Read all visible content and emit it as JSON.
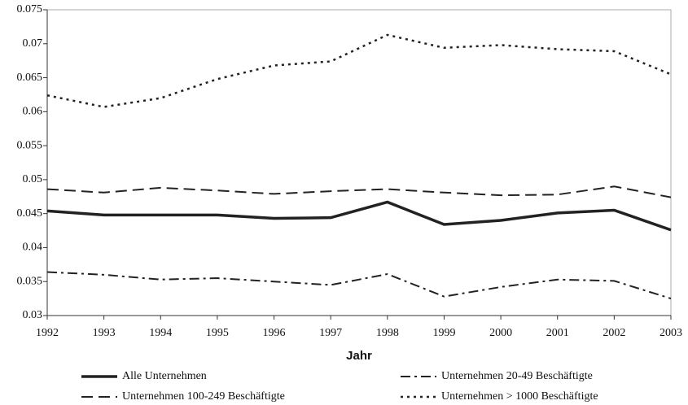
{
  "chart_data": {
    "type": "line",
    "x_label": "Jahr",
    "x": [
      1992,
      1993,
      1994,
      1995,
      1996,
      1997,
      1998,
      1999,
      2000,
      2001,
      2002,
      2003
    ],
    "xlim": [
      1992,
      2003
    ],
    "xticks": [
      1992,
      1993,
      1994,
      1995,
      1996,
      1997,
      1998,
      1999,
      2000,
      2001,
      2002,
      2003
    ],
    "ylim": [
      0.03,
      0.075
    ],
    "yticks": [
      0.03,
      0.035,
      0.04,
      0.045,
      0.05,
      0.055,
      0.06,
      0.065,
      0.07,
      0.075
    ],
    "series": [
      {
        "name": "Alle Unternehmen",
        "color": "#222222",
        "style": "solid",
        "values": [
          0.0454,
          0.0448,
          0.0448,
          0.0448,
          0.0443,
          0.0444,
          0.0467,
          0.0434,
          0.044,
          0.0451,
          0.0455,
          0.0426
        ]
      },
      {
        "name": "Unternehmen 20-49 Beschäftigte",
        "color": "#222222",
        "style": "dash-dot",
        "values": [
          0.0364,
          0.036,
          0.0353,
          0.0355,
          0.035,
          0.0345,
          0.0361,
          0.0328,
          0.0342,
          0.0353,
          0.0351,
          0.0325
        ]
      },
      {
        "name": "Unternehmen 100-249 Beschäftigte",
        "color": "#222222",
        "style": "dashed",
        "values": [
          0.0486,
          0.0481,
          0.0488,
          0.0484,
          0.0479,
          0.0483,
          0.0486,
          0.0481,
          0.0477,
          0.0478,
          0.049,
          0.0474
        ]
      },
      {
        "name": "Unternehmen > 1000 Beschäftigte",
        "color": "#222222",
        "style": "dotted",
        "values": [
          0.0624,
          0.0607,
          0.062,
          0.0648,
          0.0668,
          0.0674,
          0.0713,
          0.0694,
          0.0698,
          0.0692,
          0.0689,
          0.0655
        ]
      }
    ]
  }
}
